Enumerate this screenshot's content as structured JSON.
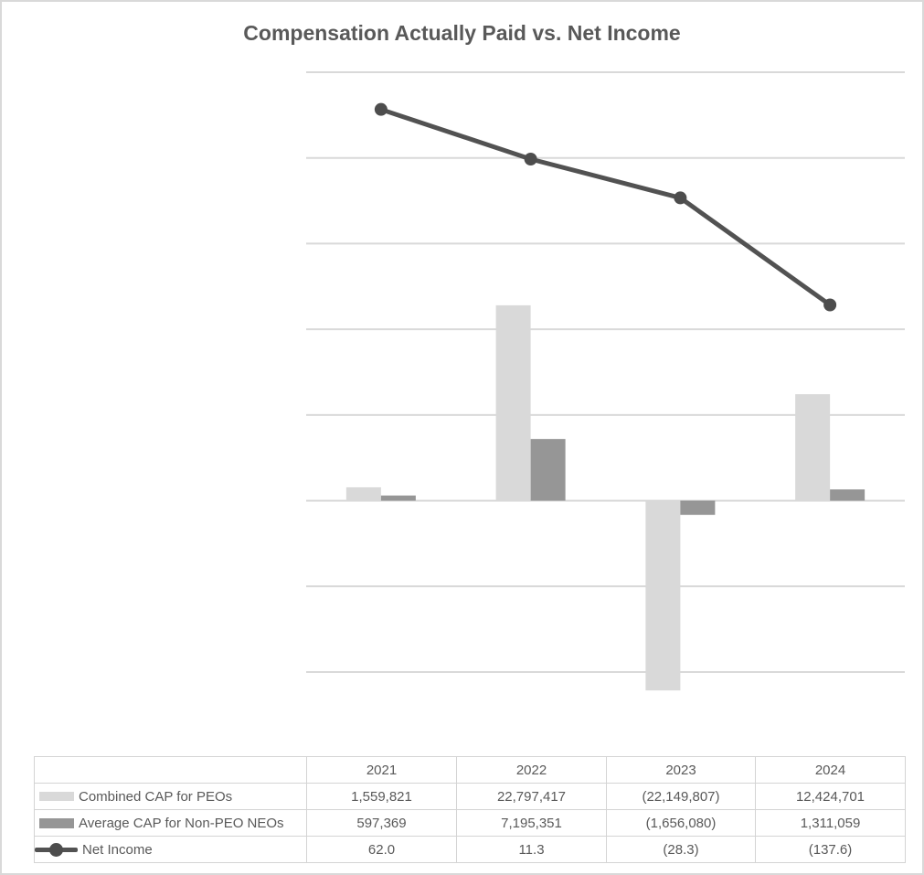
{
  "title": "Compensation Actually Paid vs. Net Income",
  "colors": {
    "bar_light": "#d9d9d9",
    "bar_dark": "#969696",
    "line": "#525252",
    "marker": "#4d4d4d",
    "grid": "#d9d9d9",
    "text": "#595959",
    "table_border": "#d4d4d4",
    "canvas_border": "#d9d9d9"
  },
  "chart_data": {
    "type": "combo: clustered bar + line on secondary axis",
    "title": "Compensation Actually Paid vs. Net Income",
    "categories": [
      "2021",
      "2022",
      "2023",
      "2024"
    ],
    "series": [
      {
        "name": "Combined CAP for PEOs",
        "type": "bar",
        "color_key": "bar_light",
        "values": [
          1559821,
          22797417,
          -22149807,
          12424701
        ]
      },
      {
        "name": "Average CAP for Non-PEO NEOs",
        "type": "bar",
        "color_key": "bar_dark",
        "values": [
          597369,
          7195351,
          -1656080,
          1311059
        ]
      },
      {
        "name": "Net Income",
        "type": "line",
        "axis": "secondary",
        "color_key": "line",
        "values": [
          62.0,
          11.3,
          -28.3,
          -137.6
        ]
      }
    ],
    "primary_axis": {
      "range": [
        -20000000,
        50000000
      ],
      "gridline_step": 10000000,
      "labels_visible": false
    },
    "secondary_axis": {
      "labels_visible": false
    },
    "gridlines": "horizontal only",
    "legend_position": "data table row headers",
    "xlabel": "",
    "ylabel": ""
  },
  "table": {
    "rows": [
      {
        "label": "Combined CAP for PEOs",
        "swatch": "bar-light",
        "values": [
          "1,559,821",
          "22,797,417",
          "(22,149,807)",
          "12,424,701"
        ]
      },
      {
        "label": "Average CAP for Non-PEO NEOs",
        "swatch": "bar-dark",
        "values": [
          "597,369",
          "7,195,351",
          "(1,656,080)",
          "1,311,059"
        ]
      },
      {
        "label": "Net Income",
        "swatch": "line-marker",
        "values": [
          "62.0",
          "11.3",
          "(28.3)",
          "(137.6)"
        ]
      }
    ]
  }
}
